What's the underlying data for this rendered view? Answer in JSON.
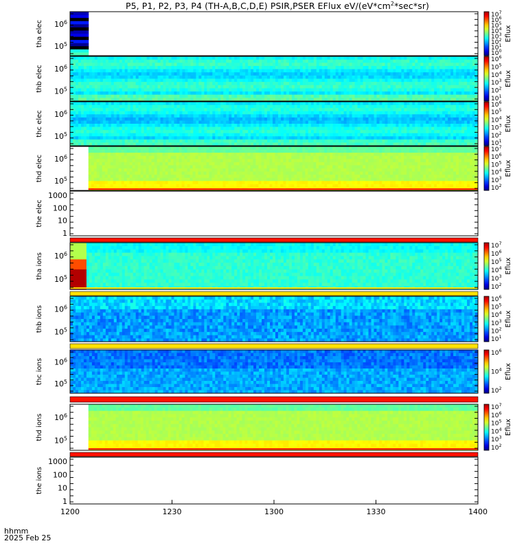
{
  "title": {
    "prefix": "P5, P1, P2, P3, P4 (TH-A,B,C,D,E) PSIR,PSER EFlux eV/(eV*cm",
    "exp": "2",
    "suffix": "*sec*sr)"
  },
  "footer": {
    "line1": "hhmm",
    "line2": "2025 Feb 25"
  },
  "chart_data": {
    "type": "heatmap",
    "x_axis": {
      "range": [
        "1200",
        "1400"
      ],
      "ticks": [
        "1200",
        "1230",
        "1300",
        "1330",
        "1400"
      ]
    },
    "colorbar_label": "Eflux",
    "panels": [
      {
        "id": "tha-elec",
        "label": [
          "tha",
          "elec"
        ],
        "yticks": [
          "10^6",
          "10^5"
        ],
        "data": "heatmap-partial",
        "cbar_ticks": [
          "10^7",
          "10^6",
          "10^5",
          "10^4",
          "10^3",
          "10^2",
          "10^1",
          "10^0"
        ]
      },
      {
        "id": "thb-elec",
        "label": [
          "thb",
          "elec"
        ],
        "yticks": [
          "10^6",
          "10^5"
        ],
        "data": "heatmap-full",
        "cbar_ticks": [
          "10^6",
          "10^5",
          "10^4",
          "10^3",
          "10^2",
          "10^1"
        ]
      },
      {
        "id": "thc-elec",
        "label": [
          "thc",
          "elec"
        ],
        "yticks": [
          "10^6",
          "10^5"
        ],
        "data": "heatmap-full",
        "cbar_ticks": [
          "10^6",
          "10^5",
          "10^4",
          "10^3",
          "10^2",
          "10^1"
        ]
      },
      {
        "id": "thd-elec",
        "label": [
          "thd",
          "elec"
        ],
        "yticks": [
          "10^6",
          "10^5"
        ],
        "data": "heatmap-from-1204",
        "cbar_ticks": [
          "10^7",
          "10^6",
          "10^5",
          "10^4",
          "10^3",
          "10^2"
        ]
      },
      {
        "id": "the-elec",
        "label": [
          "the",
          "elec"
        ],
        "yticks": [
          "1000",
          "100",
          "10",
          "1"
        ],
        "data": "none",
        "cbar_ticks": []
      },
      {
        "id": "tha-ions",
        "label": [
          "tha",
          "ions"
        ],
        "yticks": [
          "10^6",
          "10^5"
        ],
        "data": "heatmap-full",
        "cbar_ticks": [
          "10^7",
          "10^6",
          "10^5",
          "10^4",
          "10^3",
          "10^2"
        ]
      },
      {
        "id": "thb-ions",
        "label": [
          "thb",
          "ions"
        ],
        "yticks": [
          "10^6",
          "10^5"
        ],
        "data": "heatmap-full",
        "cbar_ticks": [
          "10^6",
          "10^5",
          "10^4",
          "10^3",
          "10^2",
          "10^1"
        ]
      },
      {
        "id": "thc-ions",
        "label": [
          "thc",
          "ions"
        ],
        "yticks": [
          "10^6",
          "10^5"
        ],
        "data": "heatmap-full",
        "cbar_ticks": [
          "10^6",
          "10^4",
          "10^2"
        ]
      },
      {
        "id": "thd-ions",
        "label": [
          "thd",
          "ions"
        ],
        "yticks": [
          "10^6",
          "10^5"
        ],
        "data": "heatmap-from-1204",
        "cbar_ticks": [
          "10^7",
          "10^6",
          "10^5",
          "10^4",
          "10^3",
          "10^2"
        ]
      },
      {
        "id": "the-ions",
        "label": [
          "the",
          "ions"
        ],
        "yticks": [
          "1000",
          "100",
          "10",
          "1"
        ],
        "data": "none",
        "cbar_ticks": []
      }
    ]
  }
}
